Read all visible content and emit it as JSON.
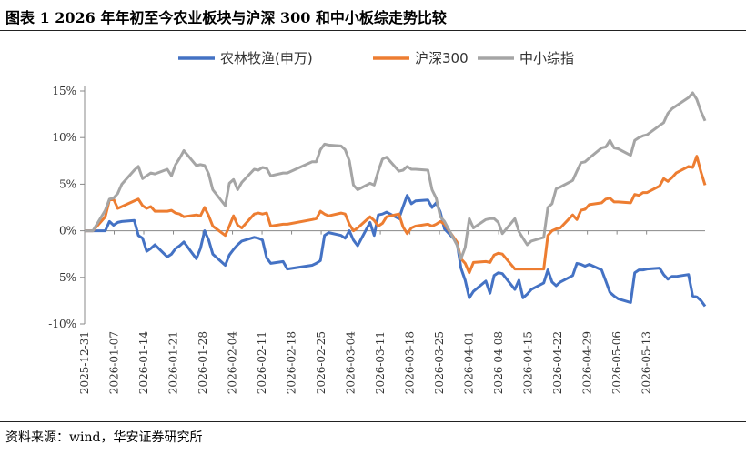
{
  "header": {
    "title": "图表 1 2026 年年初至今农业板块与沪深 300 和中小板综走势比较"
  },
  "footer": {
    "source": "资料来源：wind，华安证券研究所"
  },
  "chart_data": {
    "type": "line",
    "title": "",
    "xlabel": "",
    "ylabel": "",
    "x_ticks": [
      "2025-12-31",
      "2026-01-07",
      "2026-01-14",
      "2026-01-21",
      "2026-01-28",
      "2026-02-04",
      "2026-02-11",
      "2026-02-18",
      "2026-02-25",
      "2026-03-04",
      "2026-03-11",
      "2026-03-18",
      "2026-03-25",
      "2026-04-01",
      "2026-04-08",
      "2026-04-15",
      "2026-04-22",
      "2026-04-29",
      "2026-05-06",
      "2026-05-13"
    ],
    "y_ticks": [
      {
        "value": 15,
        "label": "15%"
      },
      {
        "value": 10,
        "label": "10%"
      },
      {
        "value": 5,
        "label": "5%"
      },
      {
        "value": 0,
        "label": "0%"
      },
      {
        "value": -5,
        "label": "-5%"
      },
      {
        "value": -10,
        "label": "-10%"
      }
    ],
    "ylim": [
      -10,
      15
    ],
    "xlim": [
      0,
      136
    ],
    "grid": false,
    "legend_position": "top-center",
    "series": [
      {
        "name": "农林牧渔(申万)",
        "color": "#4472C4",
        "points": [
          [
            0,
            0
          ],
          [
            1,
            0
          ],
          [
            2,
            0
          ],
          [
            5,
            0
          ],
          [
            6,
            1.0
          ],
          [
            7,
            0.6
          ],
          [
            8,
            0.9
          ],
          [
            9,
            1.0
          ],
          [
            12,
            1.1
          ],
          [
            13,
            -0.5
          ],
          [
            14,
            -0.8
          ],
          [
            15,
            -2.2
          ],
          [
            16,
            -1.9
          ],
          [
            17,
            -1.5
          ],
          [
            20,
            -2.8
          ],
          [
            21,
            -2.5
          ],
          [
            22,
            -1.9
          ],
          [
            23,
            -1.6
          ],
          [
            24,
            -1.2
          ],
          [
            27,
            -3.0
          ],
          [
            28,
            -1.9
          ],
          [
            29,
            0
          ],
          [
            30,
            -1.0
          ],
          [
            31,
            -2.5
          ],
          [
            34,
            -3.7
          ],
          [
            35,
            -2.6
          ],
          [
            36,
            -2.0
          ],
          [
            37,
            -1.5
          ],
          [
            38,
            -1.1
          ],
          [
            41,
            -0.7
          ],
          [
            42,
            -0.8
          ],
          [
            43,
            -1.0
          ],
          [
            44,
            -2.9
          ],
          [
            45,
            -3.5
          ],
          [
            48,
            -3.3
          ],
          [
            49,
            -4.1
          ],
          [
            55,
            -3.7
          ],
          [
            56,
            -3.5
          ],
          [
            57,
            -3.2
          ],
          [
            58,
            -0.5
          ],
          [
            59,
            -0.2
          ],
          [
            62,
            -0.5
          ],
          [
            63,
            -0.8
          ],
          [
            64,
            0
          ],
          [
            65,
            -1.0
          ],
          [
            66,
            -1.6
          ],
          [
            69,
            0.9
          ],
          [
            70,
            -0.5
          ],
          [
            71,
            1.7
          ],
          [
            72,
            1.8
          ],
          [
            73,
            2.0
          ],
          [
            76,
            1.3
          ],
          [
            77,
            2.6
          ],
          [
            78,
            3.8
          ],
          [
            79,
            2.9
          ],
          [
            80,
            3.2
          ],
          [
            83,
            3.3
          ],
          [
            84,
            2.5
          ],
          [
            85,
            3.0
          ],
          [
            86,
            2.0
          ],
          [
            87,
            0.2
          ],
          [
            90,
            -1.2
          ],
          [
            91,
            -4.0
          ],
          [
            92,
            -5.3
          ],
          [
            93,
            -7.2
          ],
          [
            94,
            -6.5
          ],
          [
            97,
            -5.4
          ],
          [
            98,
            -6.7
          ],
          [
            99,
            -4.8
          ],
          [
            100,
            -4.5
          ],
          [
            101,
            -4.6
          ],
          [
            104,
            -6.3
          ],
          [
            105,
            -5.3
          ],
          [
            106,
            -7.2
          ],
          [
            107,
            -6.8
          ],
          [
            108,
            -6.3
          ],
          [
            111,
            -5.6
          ],
          [
            112,
            -4.2
          ],
          [
            113,
            -5.5
          ],
          [
            114,
            -5.9
          ],
          [
            115,
            -5.5
          ],
          [
            118,
            -4.8
          ],
          [
            119,
            -3.5
          ],
          [
            120,
            -3.6
          ],
          [
            121,
            -3.8
          ],
          [
            122,
            -3.6
          ],
          [
            125,
            -4.2
          ],
          [
            126,
            -5.4
          ],
          [
            127,
            -6.6
          ],
          [
            128,
            -7.0
          ],
          [
            129,
            -7.3
          ],
          [
            132,
            -7.7
          ],
          [
            133,
            -4.5
          ],
          [
            134,
            -4.2
          ],
          [
            135,
            -4.2
          ],
          [
            136,
            -4.1
          ]
        ],
        "points_extended": [
          [
            139,
            -4.0
          ],
          [
            140,
            -4.7
          ],
          [
            141,
            -5.2
          ],
          [
            142,
            -4.9
          ],
          [
            143,
            -4.9
          ],
          [
            146,
            -4.7
          ],
          [
            147,
            -7.0
          ],
          [
            148,
            -7.1
          ],
          [
            149,
            -7.5
          ],
          [
            150,
            -8.1
          ]
        ]
      },
      {
        "name": "沪深300",
        "color": "#ED7D31",
        "points": [
          [
            0,
            0
          ],
          [
            1,
            0
          ],
          [
            2,
            0
          ],
          [
            5,
            1.5
          ],
          [
            6,
            3.3
          ],
          [
            7,
            3.4
          ],
          [
            8,
            2.4
          ],
          [
            9,
            2.6
          ],
          [
            12,
            3.2
          ],
          [
            13,
            3.4
          ],
          [
            14,
            2.7
          ],
          [
            15,
            2.4
          ],
          [
            16,
            2.6
          ],
          [
            17,
            2.1
          ],
          [
            20,
            2.1
          ],
          [
            21,
            2.2
          ],
          [
            22,
            1.9
          ],
          [
            23,
            1.8
          ],
          [
            24,
            1.5
          ],
          [
            27,
            1.7
          ],
          [
            28,
            1.6
          ],
          [
            29,
            2.5
          ],
          [
            30,
            1.6
          ],
          [
            31,
            0.5
          ],
          [
            34,
            -0.5
          ],
          [
            35,
            0.5
          ],
          [
            36,
            1.6
          ],
          [
            37,
            0.6
          ],
          [
            38,
            0.3
          ],
          [
            41,
            1.8
          ],
          [
            42,
            1.9
          ],
          [
            43,
            1.8
          ],
          [
            44,
            1.9
          ],
          [
            45,
            0.5
          ],
          [
            48,
            0.7
          ],
          [
            49,
            0.7
          ],
          [
            55,
            1.2
          ],
          [
            56,
            1.3
          ],
          [
            57,
            2.1
          ],
          [
            58,
            1.8
          ],
          [
            59,
            1.6
          ],
          [
            62,
            1.9
          ],
          [
            63,
            1.8
          ],
          [
            64,
            0.7
          ],
          [
            65,
            0
          ],
          [
            66,
            0.3
          ],
          [
            69,
            1.5
          ],
          [
            70,
            1.1
          ],
          [
            71,
            0.5
          ],
          [
            72,
            0.8
          ],
          [
            73,
            1.5
          ],
          [
            76,
            1.8
          ],
          [
            77,
            0.4
          ],
          [
            78,
            -0.3
          ],
          [
            79,
            0.3
          ],
          [
            80,
            0.5
          ],
          [
            83,
            0.7
          ],
          [
            84,
            0.5
          ],
          [
            85,
            0.7
          ],
          [
            86,
            1.0
          ],
          [
            87,
            0.7
          ],
          [
            90,
            -1.2
          ],
          [
            91,
            -3.0
          ],
          [
            92,
            -3.5
          ],
          [
            93,
            -4.5
          ],
          [
            94,
            -3.4
          ],
          [
            97,
            -3.3
          ],
          [
            98,
            -3.4
          ],
          [
            99,
            -2.6
          ],
          [
            100,
            -2.4
          ],
          [
            101,
            -2.5
          ],
          [
            104,
            -4.1
          ],
          [
            105,
            -4.1
          ],
          [
            106,
            -4.1
          ],
          [
            107,
            -4.1
          ],
          [
            108,
            -4.1
          ],
          [
            111,
            -4.1
          ],
          [
            112,
            -0.5
          ],
          [
            113,
            0
          ],
          [
            114,
            0.2
          ],
          [
            115,
            0.3
          ],
          [
            118,
            1.7
          ],
          [
            119,
            1.2
          ],
          [
            120,
            2.2
          ],
          [
            121,
            2.3
          ],
          [
            122,
            2.8
          ],
          [
            125,
            3.0
          ],
          [
            126,
            3.4
          ],
          [
            127,
            3.5
          ],
          [
            128,
            3.1
          ],
          [
            129,
            3.1
          ],
          [
            132,
            3.0
          ],
          [
            133,
            3.9
          ],
          [
            134,
            3.8
          ],
          [
            135,
            4.1
          ],
          [
            136,
            4.1
          ]
        ],
        "points_extended": [
          [
            139,
            4.8
          ],
          [
            140,
            5.6
          ],
          [
            141,
            5.3
          ],
          [
            142,
            5.7
          ],
          [
            143,
            6.2
          ],
          [
            146,
            6.9
          ],
          [
            147,
            6.8
          ],
          [
            148,
            8.0
          ],
          [
            149,
            6.3
          ],
          [
            150,
            4.9
          ]
        ]
      },
      {
        "name": "中小综指",
        "color": "#A5A5A5",
        "points": [
          [
            0,
            0
          ],
          [
            1,
            0
          ],
          [
            2,
            0
          ],
          [
            5,
            2.2
          ],
          [
            6,
            3.4
          ],
          [
            7,
            3.5
          ],
          [
            8,
            4.0
          ],
          [
            9,
            5.0
          ],
          [
            12,
            6.5
          ],
          [
            13,
            6.9
          ],
          [
            14,
            5.6
          ],
          [
            15,
            5.9
          ],
          [
            16,
            6.2
          ],
          [
            17,
            6.1
          ],
          [
            20,
            6.6
          ],
          [
            21,
            5.9
          ],
          [
            22,
            7.1
          ],
          [
            23,
            7.8
          ],
          [
            24,
            8.6
          ],
          [
            27,
            7.0
          ],
          [
            28,
            7.1
          ],
          [
            29,
            7.0
          ],
          [
            30,
            6.1
          ],
          [
            31,
            4.4
          ],
          [
            34,
            2.7
          ],
          [
            35,
            5.1
          ],
          [
            36,
            5.5
          ],
          [
            37,
            4.4
          ],
          [
            38,
            5.2
          ],
          [
            41,
            6.6
          ],
          [
            42,
            6.5
          ],
          [
            43,
            6.8
          ],
          [
            44,
            6.7
          ],
          [
            45,
            5.9
          ],
          [
            48,
            6.2
          ],
          [
            49,
            6.2
          ],
          [
            55,
            7.4
          ],
          [
            56,
            7.4
          ],
          [
            57,
            8.7
          ],
          [
            58,
            9.3
          ],
          [
            59,
            9.2
          ],
          [
            62,
            9.1
          ],
          [
            63,
            8.7
          ],
          [
            64,
            7.5
          ],
          [
            65,
            4.9
          ],
          [
            66,
            4.4
          ],
          [
            69,
            5.1
          ],
          [
            70,
            4.9
          ],
          [
            71,
            6.4
          ],
          [
            72,
            7.7
          ],
          [
            73,
            7.9
          ],
          [
            76,
            6.4
          ],
          [
            77,
            6.5
          ],
          [
            78,
            6.9
          ],
          [
            79,
            6.6
          ],
          [
            80,
            6.6
          ],
          [
            83,
            6.5
          ],
          [
            84,
            4.4
          ],
          [
            85,
            3.5
          ],
          [
            86,
            1.5
          ],
          [
            87,
            1.0
          ],
          [
            90,
            -1.5
          ],
          [
            91,
            -3.0
          ],
          [
            92,
            -1.8
          ],
          [
            93,
            1.3
          ],
          [
            94,
            0.3
          ],
          [
            97,
            1.2
          ],
          [
            98,
            1.3
          ],
          [
            99,
            1.3
          ],
          [
            100,
            0.9
          ],
          [
            101,
            -0.3
          ],
          [
            104,
            1.3
          ],
          [
            105,
            -0.1
          ],
          [
            106,
            -0.8
          ],
          [
            107,
            -1.5
          ],
          [
            108,
            -1.1
          ],
          [
            111,
            -0.7
          ],
          [
            112,
            2.5
          ],
          [
            113,
            2.9
          ],
          [
            114,
            4.5
          ],
          [
            115,
            4.7
          ],
          [
            118,
            5.4
          ],
          [
            119,
            6.4
          ],
          [
            120,
            7.3
          ],
          [
            121,
            7.4
          ],
          [
            122,
            7.8
          ],
          [
            125,
            8.9
          ],
          [
            126,
            9.0
          ],
          [
            127,
            9.7
          ],
          [
            128,
            8.9
          ],
          [
            129,
            8.8
          ],
          [
            132,
            8.1
          ],
          [
            133,
            9.7
          ],
          [
            134,
            10.0
          ],
          [
            135,
            10.2
          ],
          [
            136,
            10.3
          ]
        ],
        "points_extended": [
          [
            139,
            11.3
          ],
          [
            140,
            11.6
          ],
          [
            141,
            12.6
          ],
          [
            142,
            13.1
          ],
          [
            143,
            13.4
          ],
          [
            146,
            14.3
          ],
          [
            147,
            14.8
          ],
          [
            148,
            14.1
          ],
          [
            149,
            12.8
          ],
          [
            150,
            11.8
          ]
        ]
      }
    ]
  }
}
